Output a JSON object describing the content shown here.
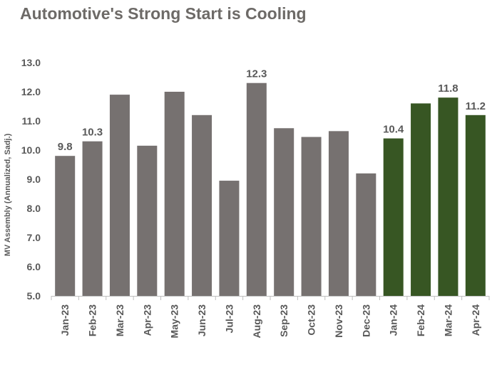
{
  "chart_data": {
    "type": "bar",
    "title": "Automotive's Strong Start is Cooling",
    "ylabel": "MV Assembly (Annualized, Sadj.)",
    "xlabel": "",
    "ylim": [
      5.0,
      13.0
    ],
    "yticks": [
      "5.0",
      "6.0",
      "7.0",
      "8.0",
      "9.0",
      "10.0",
      "11.0",
      "12.0",
      "13.0"
    ],
    "categories": [
      "Jan-23",
      "Feb-23",
      "Mar-23",
      "Apr-23",
      "May-23",
      "Jun-23",
      "Jul-23",
      "Aug-23",
      "Sep-23",
      "Oct-23",
      "Nov-23",
      "Dec-23",
      "Jan-24",
      "Feb-24",
      "Mar-24",
      "Apr-24"
    ],
    "values": [
      9.8,
      10.3,
      11.9,
      10.15,
      12.0,
      11.2,
      8.95,
      12.3,
      10.75,
      10.45,
      10.65,
      9.2,
      10.4,
      11.6,
      11.8,
      11.2
    ],
    "data_labels": [
      "9.8",
      "10.3",
      "",
      "",
      "",
      "",
      "",
      "12.3",
      "",
      "",
      "",
      "",
      "10.4",
      "",
      "11.8",
      "11.2"
    ],
    "colors": {
      "grey_bar": "#767170",
      "green_bar": "#375623",
      "axis": "#bfbfbf",
      "text": "#595959",
      "title": "#6d6a67"
    },
    "highlight_from_index": 12,
    "grid": false,
    "legend": "none"
  }
}
